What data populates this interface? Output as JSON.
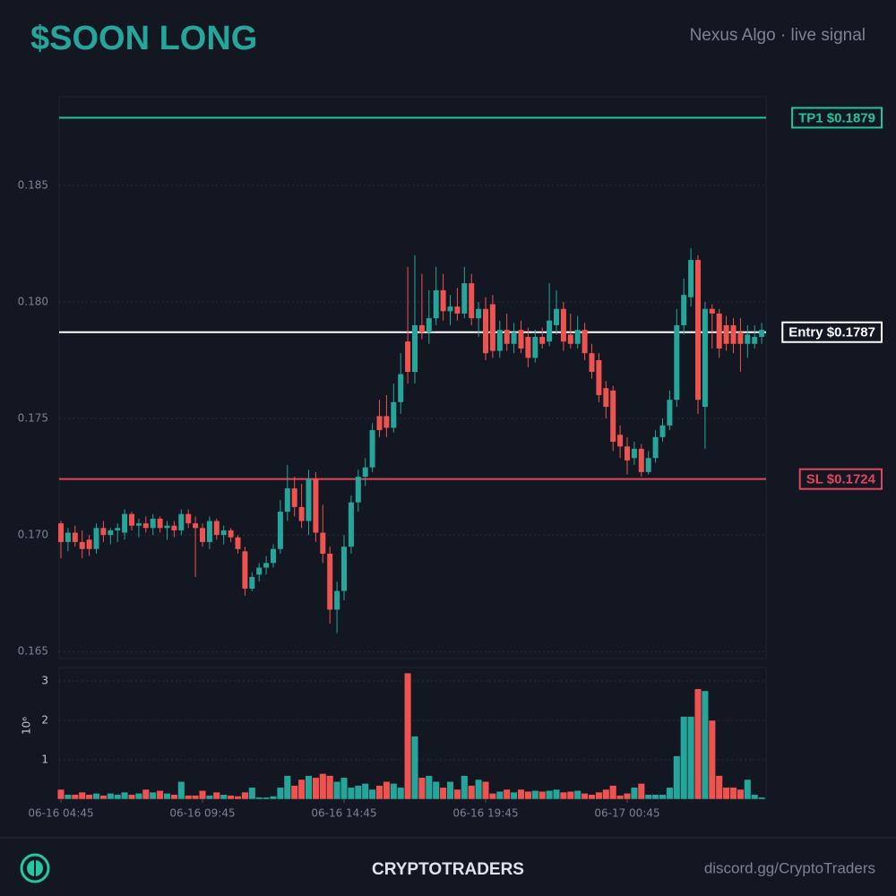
{
  "header": {
    "title": "$SOON LONG",
    "subtitle": "Nexus Algo · live signal"
  },
  "chart_data": {
    "type": "candlestick",
    "x": [
      "06-16 04:45",
      "06-16 05:00",
      "06-16 05:15",
      "06-16 05:30",
      "06-16 05:45",
      "06-16 06:00",
      "06-16 06:15",
      "06-16 06:30",
      "06-16 06:45",
      "06-16 07:00",
      "06-16 07:15",
      "06-16 07:30",
      "06-16 07:45",
      "06-16 08:00",
      "06-16 08:15",
      "06-16 08:30",
      "06-16 08:45",
      "06-16 09:00",
      "06-16 09:15",
      "06-16 09:30",
      "06-16 09:45",
      "06-16 10:00",
      "06-16 10:15",
      "06-16 10:30",
      "06-16 10:45",
      "06-16 11:00",
      "06-16 11:15",
      "06-16 11:30",
      "06-16 11:45",
      "06-16 12:00",
      "06-16 12:15",
      "06-16 12:30",
      "06-16 12:45",
      "06-16 13:00",
      "06-16 13:15",
      "06-16 13:30",
      "06-16 13:45",
      "06-16 14:00",
      "06-16 14:15",
      "06-16 14:30",
      "06-16 14:45",
      "06-16 15:00",
      "06-16 15:15",
      "06-16 15:30",
      "06-16 15:45",
      "06-16 16:00",
      "06-16 16:15",
      "06-16 16:30",
      "06-16 16:45",
      "06-16 17:00",
      "06-16 17:15",
      "06-16 17:30",
      "06-16 17:45",
      "06-16 18:00",
      "06-16 18:15",
      "06-16 18:30",
      "06-16 18:45",
      "06-16 19:00",
      "06-16 19:15",
      "06-16 19:30",
      "06-16 19:45",
      "06-16 20:00",
      "06-16 20:15",
      "06-16 20:30",
      "06-16 20:45",
      "06-16 21:00",
      "06-16 21:15",
      "06-16 21:30",
      "06-16 21:45",
      "06-16 22:00",
      "06-16 22:15",
      "06-16 22:30",
      "06-16 22:45",
      "06-16 23:00",
      "06-16 23:15",
      "06-16 23:30",
      "06-16 23:45",
      "06-17 00:00",
      "06-17 00:15",
      "06-17 00:30",
      "06-17 00:45",
      "06-17 01:00",
      "06-17 01:15",
      "06-17 01:30",
      "06-17 01:45",
      "06-17 02:00",
      "06-17 02:15",
      "06-17 02:30",
      "06-17 02:45",
      "06-17 03:00",
      "06-17 03:15",
      "06-17 03:30",
      "06-17 03:45",
      "06-17 04:00",
      "06-17 04:15",
      "06-17 04:30",
      "06-17 04:45",
      "06-17 05:00",
      "06-17 05:15",
      "06-17 05:30"
    ],
    "open": [
      0.1705,
      0.1697,
      0.1701,
      0.1697,
      0.1698,
      0.1694,
      0.1703,
      0.17,
      0.1702,
      0.1701,
      0.1709,
      0.1704,
      0.1705,
      0.1703,
      0.1707,
      0.1703,
      0.1704,
      0.1702,
      0.1709,
      0.1705,
      0.1703,
      0.1697,
      0.1706,
      0.17,
      0.1702,
      0.1699,
      0.1693,
      0.1677,
      0.1683,
      0.1686,
      0.1688,
      0.1694,
      0.171,
      0.172,
      0.1712,
      0.1706,
      0.1724,
      0.1701,
      0.1692,
      0.1668,
      0.1676,
      0.1695,
      0.1714,
      0.1725,
      0.1729,
      0.1751,
      0.1751,
      0.1746,
      0.1757,
      0.1783,
      0.177,
      0.179,
      0.1787,
      0.1793,
      0.1805,
      0.1796,
      0.1798,
      0.1795,
      0.1808,
      0.1793,
      0.1797,
      0.1799,
      0.1779,
      0.1788,
      0.1782,
      0.1788,
      0.1785,
      0.1776,
      0.1785,
      0.1783,
      0.179,
      0.1797,
      0.1786,
      0.1782,
      0.1788,
      0.1778,
      0.1775,
      0.1763,
      0.1762,
      0.1743,
      0.1738,
      0.1733,
      0.1737,
      0.1727,
      0.1733,
      0.1742,
      0.1747,
      0.1758,
      0.179,
      0.1802,
      0.1818,
      0.1755,
      0.1797,
      0.1795,
      0.179,
      0.179,
      0.1787,
      0.1782,
      0.1782,
      0.1785
    ],
    "high": [
      0.1706,
      0.1703,
      0.1704,
      0.1702,
      0.17,
      0.1705,
      0.1706,
      0.1703,
      0.1705,
      0.1711,
      0.171,
      0.1707,
      0.1708,
      0.1709,
      0.1708,
      0.1706,
      0.1706,
      0.1711,
      0.1711,
      0.1708,
      0.1705,
      0.1708,
      0.1707,
      0.1704,
      0.1703,
      0.17,
      0.1695,
      0.1684,
      0.1688,
      0.1691,
      0.1696,
      0.1715,
      0.173,
      0.1725,
      0.1722,
      0.1728,
      0.1727,
      0.1713,
      0.1695,
      0.168,
      0.17,
      0.1717,
      0.1728,
      0.1733,
      0.1748,
      0.1758,
      0.176,
      0.1765,
      0.1778,
      0.1815,
      0.182,
      0.1812,
      0.1805,
      0.1815,
      0.1812,
      0.1803,
      0.1806,
      0.1815,
      0.1812,
      0.18,
      0.1802,
      0.1803,
      0.1792,
      0.1795,
      0.1791,
      0.1792,
      0.1789,
      0.1788,
      0.1789,
      0.1808,
      0.1805,
      0.18,
      0.1795,
      0.1794,
      0.1791,
      0.1782,
      0.1778,
      0.1766,
      0.1764,
      0.1747,
      0.1742,
      0.174,
      0.1739,
      0.1736,
      0.1745,
      0.175,
      0.1762,
      0.1797,
      0.181,
      0.1823,
      0.182,
      0.18,
      0.1799,
      0.1797,
      0.1794,
      0.1793,
      0.1793,
      0.179,
      0.179,
      0.1791
    ],
    "low": [
      0.169,
      0.1693,
      0.1695,
      0.169,
      0.1691,
      0.1692,
      0.1697,
      0.1696,
      0.1697,
      0.1698,
      0.1702,
      0.1699,
      0.1701,
      0.17,
      0.1701,
      0.1698,
      0.1699,
      0.17,
      0.1703,
      0.1682,
      0.1695,
      0.1694,
      0.1698,
      0.1696,
      0.1697,
      0.1692,
      0.1674,
      0.1676,
      0.168,
      0.1683,
      0.1686,
      0.1692,
      0.1706,
      0.1708,
      0.1703,
      0.17,
      0.1697,
      0.1688,
      0.1662,
      0.1658,
      0.1672,
      0.1692,
      0.171,
      0.1721,
      0.1727,
      0.1742,
      0.1742,
      0.1744,
      0.1752,
      0.1765,
      0.1765,
      0.1784,
      0.1782,
      0.179,
      0.1792,
      0.179,
      0.1792,
      0.1793,
      0.179,
      0.1785,
      0.1775,
      0.1776,
      0.1776,
      0.1779,
      0.1778,
      0.1778,
      0.1772,
      0.1774,
      0.178,
      0.1781,
      0.1786,
      0.1779,
      0.178,
      0.178,
      0.1775,
      0.1767,
      0.1757,
      0.175,
      0.1736,
      0.1733,
      0.1726,
      0.173,
      0.1725,
      0.1726,
      0.1731,
      0.174,
      0.1745,
      0.1755,
      0.1786,
      0.1798,
      0.1752,
      0.1737,
      0.178,
      0.1776,
      0.1779,
      0.1778,
      0.177,
      0.1776,
      0.178,
      0.1782
    ],
    "close": [
      0.1697,
      0.1701,
      0.1697,
      0.1694,
      0.1694,
      0.1703,
      0.17,
      0.1702,
      0.1703,
      0.1709,
      0.1704,
      0.1705,
      0.1703,
      0.1707,
      0.1703,
      0.1704,
      0.1702,
      0.1709,
      0.1705,
      0.1703,
      0.1697,
      0.1706,
      0.17,
      0.1702,
      0.1699,
      0.1694,
      0.1677,
      0.1682,
      0.1686,
      0.1688,
      0.1694,
      0.171,
      0.172,
      0.1712,
      0.1706,
      0.1724,
      0.1701,
      0.1692,
      0.1668,
      0.1676,
      0.1695,
      0.1714,
      0.1725,
      0.1729,
      0.1745,
      0.1745,
      0.1746,
      0.1757,
      0.1769,
      0.177,
      0.179,
      0.1787,
      0.1793,
      0.1805,
      0.1796,
      0.1798,
      0.1795,
      0.1808,
      0.1793,
      0.1797,
      0.1778,
      0.1779,
      0.1788,
      0.1782,
      0.1787,
      0.178,
      0.1776,
      0.1785,
      0.1782,
      0.1792,
      0.1797,
      0.1783,
      0.1782,
      0.1788,
      0.1778,
      0.177,
      0.176,
      0.1755,
      0.174,
      0.1738,
      0.1732,
      0.1737,
      0.1727,
      0.1733,
      0.1742,
      0.1747,
      0.1758,
      0.179,
      0.1803,
      0.1818,
      0.1758,
      0.1797,
      0.1795,
      0.178,
      0.1782,
      0.1782,
      0.1782,
      0.1786,
      0.1785,
      0.1788
    ],
    "ylim": [
      0.1647,
      0.1888
    ],
    "yticks": [
      0.165,
      {
        "value": 0.17,
        "label": "0.170"
      },
      0.175,
      {
        "value": 0.18,
        "label": "0.180"
      },
      0.185
    ],
    "xticks": [
      "06-16 04:45",
      "06-16 09:45",
      "06-16 14:45",
      "06-16 19:45",
      "06-17 00:45"
    ],
    "grid": true,
    "up_color": "#26a69a",
    "down_color": "#ef5350",
    "levels": [
      {
        "label": "TP1 $0.1879",
        "value": 0.1879,
        "color": "#22c59b"
      },
      {
        "label": "Entry $0.1787",
        "value": 0.1787,
        "color": "#ffffff"
      },
      {
        "label": "SL $0.1724",
        "value": 0.1724,
        "color": "#e5455a"
      }
    ],
    "volume": {
      "axis_multiplier": "10⁶",
      "ylim": [
        0,
        3.34
      ],
      "yticks": [
        1,
        2,
        3
      ],
      "values": [
        0.25,
        0.12,
        0.12,
        0.18,
        0.12,
        0.15,
        0.1,
        0.15,
        0.12,
        0.18,
        0.12,
        0.15,
        0.25,
        0.18,
        0.22,
        0.15,
        0.12,
        0.45,
        0.1,
        0.1,
        0.22,
        0.1,
        0.18,
        0.12,
        0.1,
        0.08,
        0.18,
        0.3,
        0.05,
        0.05,
        0.08,
        0.3,
        0.6,
        0.35,
        0.5,
        0.6,
        0.55,
        0.65,
        0.6,
        0.45,
        0.55,
        0.3,
        0.35,
        0.4,
        0.25,
        0.35,
        0.45,
        0.4,
        0.3,
        3.2,
        1.6,
        0.55,
        0.6,
        0.45,
        0.3,
        0.45,
        0.25,
        0.6,
        0.35,
        0.5,
        0.45,
        0.15,
        0.2,
        0.25,
        0.18,
        0.25,
        0.2,
        0.22,
        0.2,
        0.22,
        0.25,
        0.18,
        0.2,
        0.22,
        0.15,
        0.12,
        0.18,
        0.25,
        0.35,
        0.1,
        0.15,
        0.3,
        0.4,
        0.12,
        0.12,
        0.12,
        0.3,
        1.1,
        2.1,
        2.1,
        2.8,
        2.75,
        2.0,
        0.6,
        0.3,
        0.3,
        0.25,
        0.5,
        0.12,
        0.05
      ]
    }
  },
  "footer": {
    "brand": "CRYPTOTRADERS",
    "link": "discord.gg/CryptoTraders"
  }
}
